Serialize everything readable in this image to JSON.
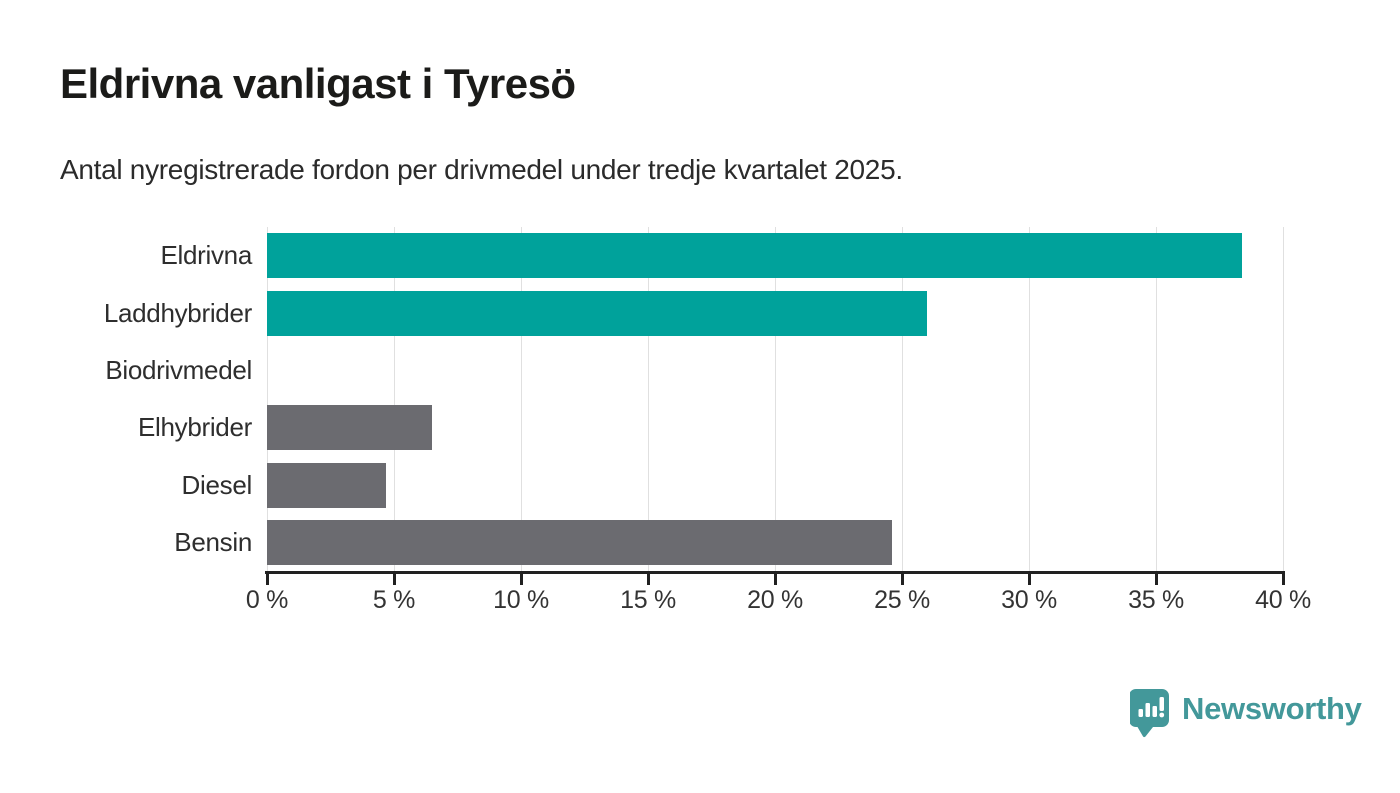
{
  "title": "Eldrivna vanligast i Tyresö",
  "subtitle": "Antal nyregistrerade fordon per drivmedel under tredje kvartalet 2025.",
  "chart_data": {
    "type": "bar",
    "orientation": "horizontal",
    "title": "Eldrivna vanligast i Tyresö",
    "subtitle": "Antal nyregistrerade fordon per drivmedel under tredje kvartalet 2025.",
    "categories": [
      "Eldrivna",
      "Laddhybrider",
      "Biodrivmedel",
      "Elhybrider",
      "Diesel",
      "Bensin"
    ],
    "values": [
      38.4,
      26.0,
      0,
      6.5,
      4.7,
      24.6
    ],
    "unit": "%",
    "bar_colors": [
      "#00a29b",
      "#00a29b",
      "#00a29b",
      "#6b6b70",
      "#6b6b70",
      "#6b6b70"
    ],
    "xlim": [
      0,
      40
    ],
    "xticks": [
      0,
      5,
      10,
      15,
      20,
      25,
      30,
      35,
      40
    ],
    "xtick_suffix": " %",
    "grid": true,
    "legend_position": "none"
  },
  "colors": {
    "teal": "#00a29b",
    "gray": "#6b6b70",
    "gridline": "#e0e0e0",
    "axis": "#212121",
    "title_text": "#1b1b19",
    "label_text": "#2e2e2e",
    "brand_teal": "#43989a"
  },
  "branding": {
    "name": "Newsworthy",
    "icon": "newsworthy-chart-pin-icon"
  }
}
